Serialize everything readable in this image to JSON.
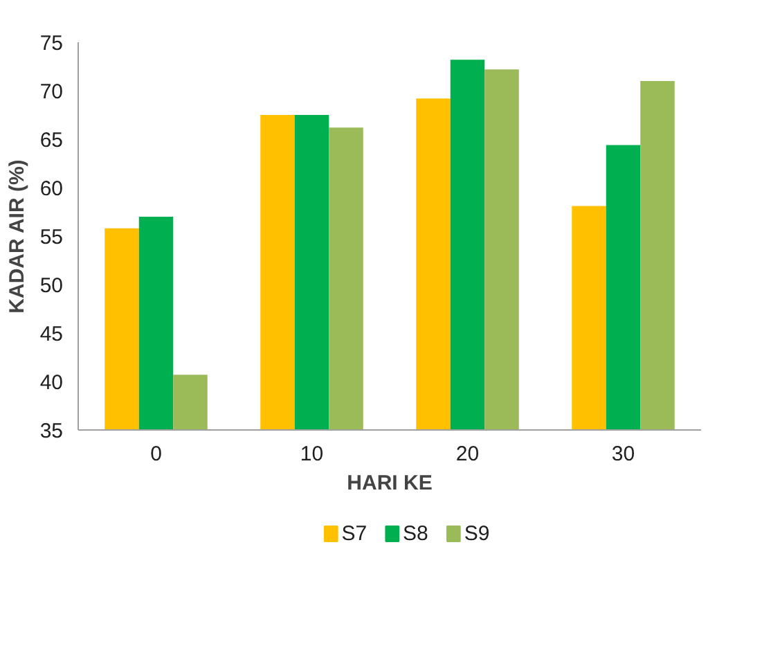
{
  "chart_data": {
    "type": "bar",
    "xlabel": "HARI KE",
    "ylabel": "KADAR AIR (%)",
    "categories": [
      "0",
      "10",
      "20",
      "30"
    ],
    "series": [
      {
        "name": "S7",
        "color": "#ffc000",
        "values": [
          55.8,
          67.5,
          69.2,
          58.1
        ]
      },
      {
        "name": "S8",
        "color": "#00b050",
        "values": [
          57.0,
          67.5,
          73.2,
          64.4
        ]
      },
      {
        "name": "S9",
        "color": "#9bbb59",
        "values": [
          40.7,
          66.2,
          72.2,
          71.0
        ]
      }
    ],
    "ylim": [
      35,
      75
    ],
    "yticks": [
      35,
      40,
      45,
      50,
      55,
      60,
      65,
      70,
      75
    ],
    "grid": false,
    "legend": "bottom"
  }
}
